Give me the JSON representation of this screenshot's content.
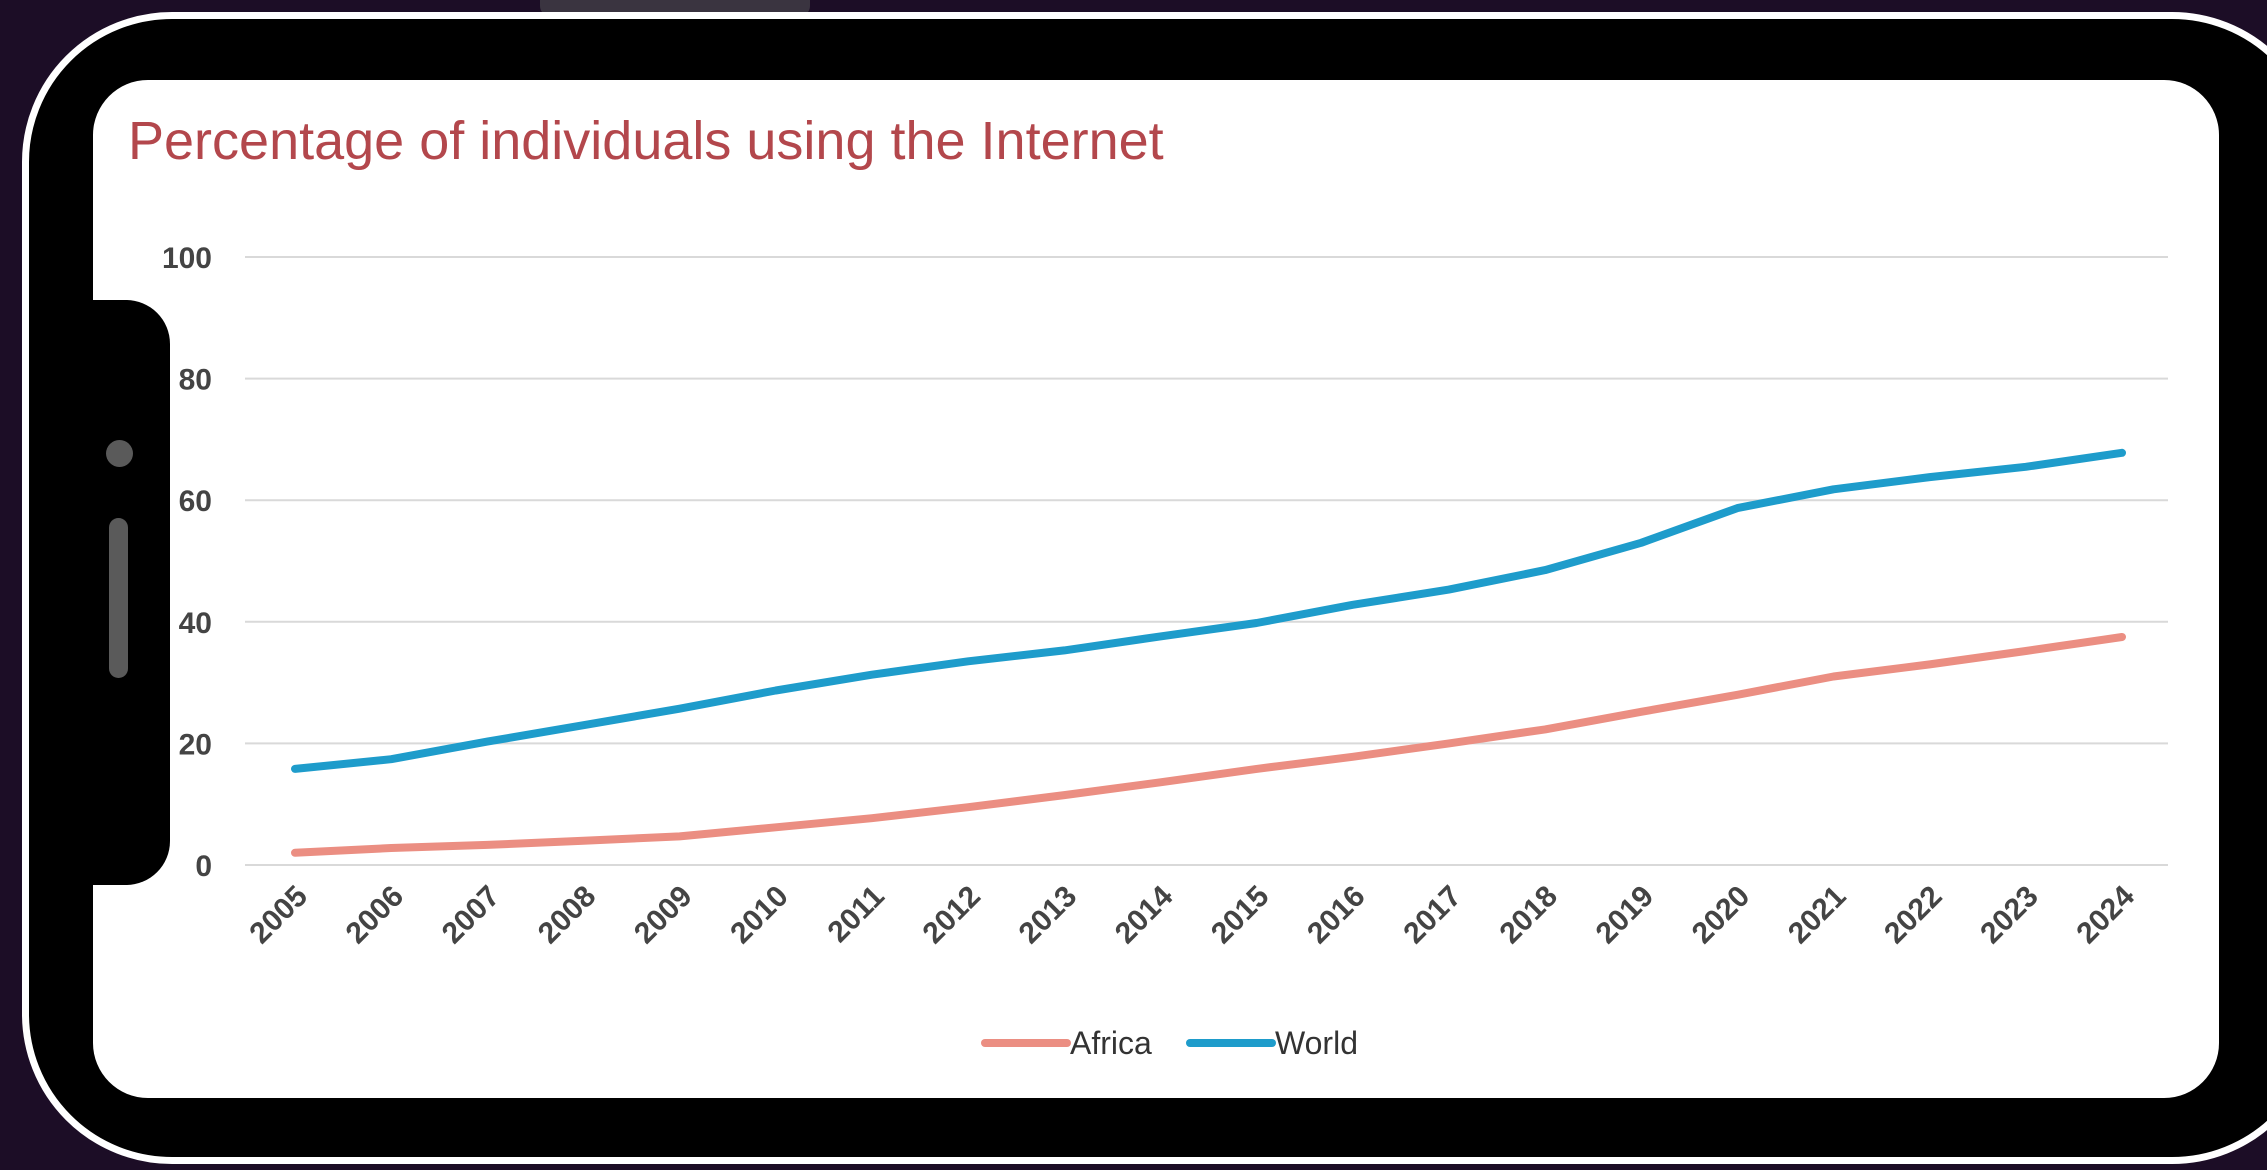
{
  "chart_data": {
    "type": "line",
    "title": "Percentage of individuals using the Internet",
    "xlabel": "",
    "ylabel": "",
    "x": [
      "2005",
      "2006",
      "2007",
      "2008",
      "2009",
      "2010",
      "2011",
      "2012",
      "2013",
      "2014",
      "2015",
      "2016",
      "2017",
      "2018",
      "2019",
      "2020",
      "2021",
      "2022",
      "2023",
      "2024"
    ],
    "yticks": [
      "0",
      "20",
      "40",
      "60",
      "80",
      "100"
    ],
    "ylim": [
      0,
      100
    ],
    "grid": true,
    "legend": "bottom-center",
    "series": [
      {
        "name": "Africa",
        "color": "#eb8e82",
        "values": [
          2,
          2.8,
          3.3,
          4,
          4.7,
          6.2,
          7.7,
          9.5,
          11.5,
          13.6,
          15.8,
          17.8,
          20,
          22.3,
          25.2,
          28,
          31,
          33,
          35.2,
          37.5
        ]
      },
      {
        "name": "World",
        "color": "#1e9ccb",
        "values": [
          15.8,
          17.4,
          20.3,
          23,
          25.7,
          28.7,
          31.3,
          33.5,
          35.3,
          37.6,
          39.8,
          42.8,
          45.3,
          48.5,
          53,
          58.7,
          61.8,
          63.8,
          65.5,
          67.8
        ]
      }
    ]
  }
}
